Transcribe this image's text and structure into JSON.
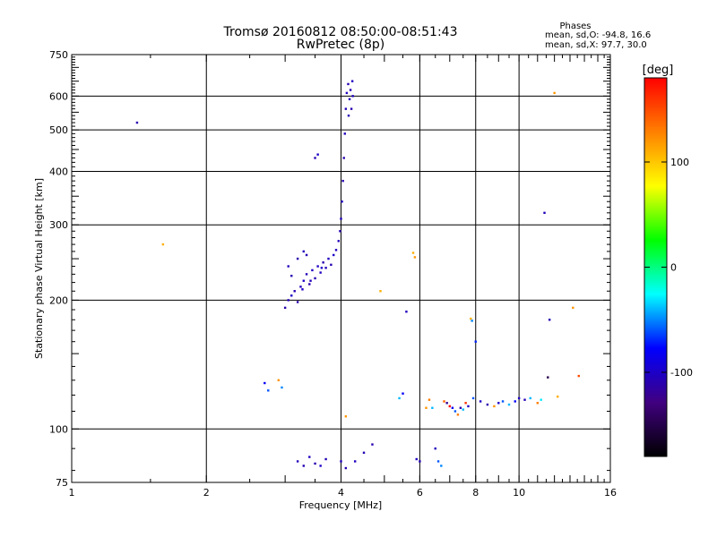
{
  "header": {
    "title": "Tromsø 20160812 08:50:00-08:51:43",
    "subtitle": "RwPretec (8p)"
  },
  "stats": {
    "heading": "Phases",
    "line_o": "mean, sd,O: -94.8, 16.6",
    "line_x": "mean, sd,X:  97.7, 30.0"
  },
  "colorbar": {
    "title": "[deg]",
    "ticks": [
      {
        "value": 100,
        "label": "100"
      },
      {
        "value": 0,
        "label": "0"
      },
      {
        "value": -100,
        "label": "-100"
      }
    ],
    "range": [
      -180,
      180
    ],
    "stops": [
      "#ff0000",
      "#ff8000",
      "#ffff00",
      "#00ff00",
      "#00ffff",
      "#0000ff",
      "#400080",
      "#000000"
    ]
  },
  "chart_data": {
    "type": "scatter",
    "xlabel": "Frequency [MHz]",
    "ylabel": "Stationary phase Virtual Height [km]",
    "xscale": "log",
    "yscale": "log",
    "xlim": [
      1,
      16
    ],
    "ylim": [
      75,
      750
    ],
    "xticks": [
      {
        "value": 1,
        "label": "1"
      },
      {
        "value": 2,
        "label": "2"
      },
      {
        "value": 4,
        "label": "4"
      },
      {
        "value": 6,
        "label": "6"
      },
      {
        "value": 8,
        "label": "8"
      },
      {
        "value": 10,
        "label": "10"
      },
      {
        "value": 16,
        "label": "16"
      }
    ],
    "yticks": [
      {
        "value": 75,
        "label": "75"
      },
      {
        "value": 100,
        "label": "100"
      },
      {
        "value": 200,
        "label": "200"
      },
      {
        "value": 300,
        "label": "300"
      },
      {
        "value": 400,
        "label": "400"
      },
      {
        "value": 500,
        "label": "500"
      },
      {
        "value": 600,
        "label": "600"
      },
      {
        "value": 750,
        "label": "750"
      }
    ],
    "grid": true,
    "points": [
      [
        3.0,
        192,
        -110
      ],
      [
        3.05,
        200,
        -105
      ],
      [
        3.1,
        205,
        -100
      ],
      [
        3.15,
        210,
        -108
      ],
      [
        3.2,
        198,
        -112
      ],
      [
        3.25,
        215,
        -104
      ],
      [
        3.3,
        222,
        -100
      ],
      [
        3.35,
        230,
        -106
      ],
      [
        3.4,
        218,
        -110
      ],
      [
        3.45,
        235,
        -102
      ],
      [
        3.5,
        225,
        -108
      ],
      [
        3.55,
        240,
        -100
      ],
      [
        3.6,
        232,
        -104
      ],
      [
        3.65,
        245,
        -110
      ],
      [
        3.7,
        238,
        -106
      ],
      [
        3.75,
        250,
        -102
      ],
      [
        3.8,
        242,
        -108
      ],
      [
        3.85,
        255,
        -100
      ],
      [
        3.9,
        262,
        -104
      ],
      [
        3.95,
        275,
        -106
      ],
      [
        3.98,
        290,
        -110
      ],
      [
        4.0,
        310,
        -104
      ],
      [
        4.02,
        340,
        -102
      ],
      [
        4.04,
        380,
        -108
      ],
      [
        4.06,
        430,
        -110
      ],
      [
        4.08,
        490,
        -104
      ],
      [
        4.1,
        560,
        -106
      ],
      [
        4.12,
        610,
        -102
      ],
      [
        4.15,
        640,
        -108
      ],
      [
        4.18,
        590,
        -104
      ],
      [
        4.2,
        620,
        -106
      ],
      [
        4.22,
        560,
        -110
      ],
      [
        4.25,
        600,
        -104
      ],
      [
        4.24,
        650,
        -102
      ],
      [
        4.16,
        540,
        -106
      ],
      [
        3.3,
        260,
        -104
      ],
      [
        3.35,
        255,
        -108
      ],
      [
        3.2,
        250,
        -110
      ],
      [
        3.5,
        430,
        -106
      ],
      [
        3.55,
        438,
        -100
      ],
      [
        3.05,
        240,
        -104
      ],
      [
        3.1,
        228,
        -108
      ],
      [
        3.28,
        212,
        -102
      ],
      [
        3.42,
        222,
        -106
      ],
      [
        3.62,
        238,
        -100
      ],
      [
        1.4,
        520,
        -108
      ],
      [
        1.6,
        270,
        110
      ],
      [
        2.7,
        128,
        -80
      ],
      [
        2.75,
        123,
        -60
      ],
      [
        2.9,
        130,
        120
      ],
      [
        2.95,
        125,
        -50
      ],
      [
        3.2,
        84,
        -104
      ],
      [
        3.3,
        82,
        -108
      ],
      [
        3.4,
        86,
        -102
      ],
      [
        3.5,
        83,
        -110
      ],
      [
        3.6,
        82,
        -100
      ],
      [
        3.7,
        85,
        -106
      ],
      [
        4.0,
        84,
        -104
      ],
      [
        4.1,
        81,
        -108
      ],
      [
        4.3,
        84,
        -102
      ],
      [
        4.5,
        88,
        -106
      ],
      [
        4.7,
        92,
        -110
      ],
      [
        4.9,
        210,
        110
      ],
      [
        4.1,
        107,
        120
      ],
      [
        5.4,
        118,
        -40
      ],
      [
        5.5,
        121,
        -80
      ],
      [
        5.6,
        188,
        -104
      ],
      [
        5.8,
        258,
        110
      ],
      [
        5.85,
        252,
        120
      ],
      [
        5.9,
        85,
        -102
      ],
      [
        6.0,
        84,
        -106
      ],
      [
        6.2,
        112,
        120
      ],
      [
        6.3,
        117,
        130
      ],
      [
        6.4,
        112,
        -40
      ],
      [
        6.5,
        90,
        -104
      ],
      [
        6.6,
        84,
        -60
      ],
      [
        6.7,
        82,
        -50
      ],
      [
        6.8,
        116,
        140
      ],
      [
        6.9,
        115,
        -120
      ],
      [
        7.0,
        113,
        180
      ],
      [
        7.1,
        112,
        -80
      ],
      [
        7.2,
        110,
        -60
      ],
      [
        7.3,
        108,
        130
      ],
      [
        7.4,
        112,
        -110
      ],
      [
        7.5,
        111,
        -40
      ],
      [
        7.6,
        115,
        160
      ],
      [
        7.7,
        113,
        -100
      ],
      [
        7.8,
        181,
        110
      ],
      [
        7.85,
        179,
        -50
      ],
      [
        7.9,
        118,
        -60
      ],
      [
        8.0,
        160,
        -70
      ],
      [
        8.2,
        116,
        -100
      ],
      [
        8.5,
        114,
        -110
      ],
      [
        8.8,
        113,
        120
      ],
      [
        9.0,
        115,
        -100
      ],
      [
        9.2,
        116,
        -60
      ],
      [
        9.5,
        114,
        -40
      ],
      [
        9.8,
        116,
        -80
      ],
      [
        10.0,
        118,
        -100
      ],
      [
        10.3,
        117,
        -106
      ],
      [
        10.6,
        118,
        -40
      ],
      [
        11.0,
        115,
        130
      ],
      [
        11.2,
        117,
        -30
      ],
      [
        11.4,
        320,
        -104
      ],
      [
        11.6,
        132,
        -150
      ],
      [
        11.7,
        180,
        -108
      ],
      [
        12.0,
        610,
        120
      ],
      [
        12.2,
        119,
        110
      ],
      [
        13.2,
        192,
        120
      ],
      [
        13.6,
        133,
        150
      ]
    ]
  }
}
